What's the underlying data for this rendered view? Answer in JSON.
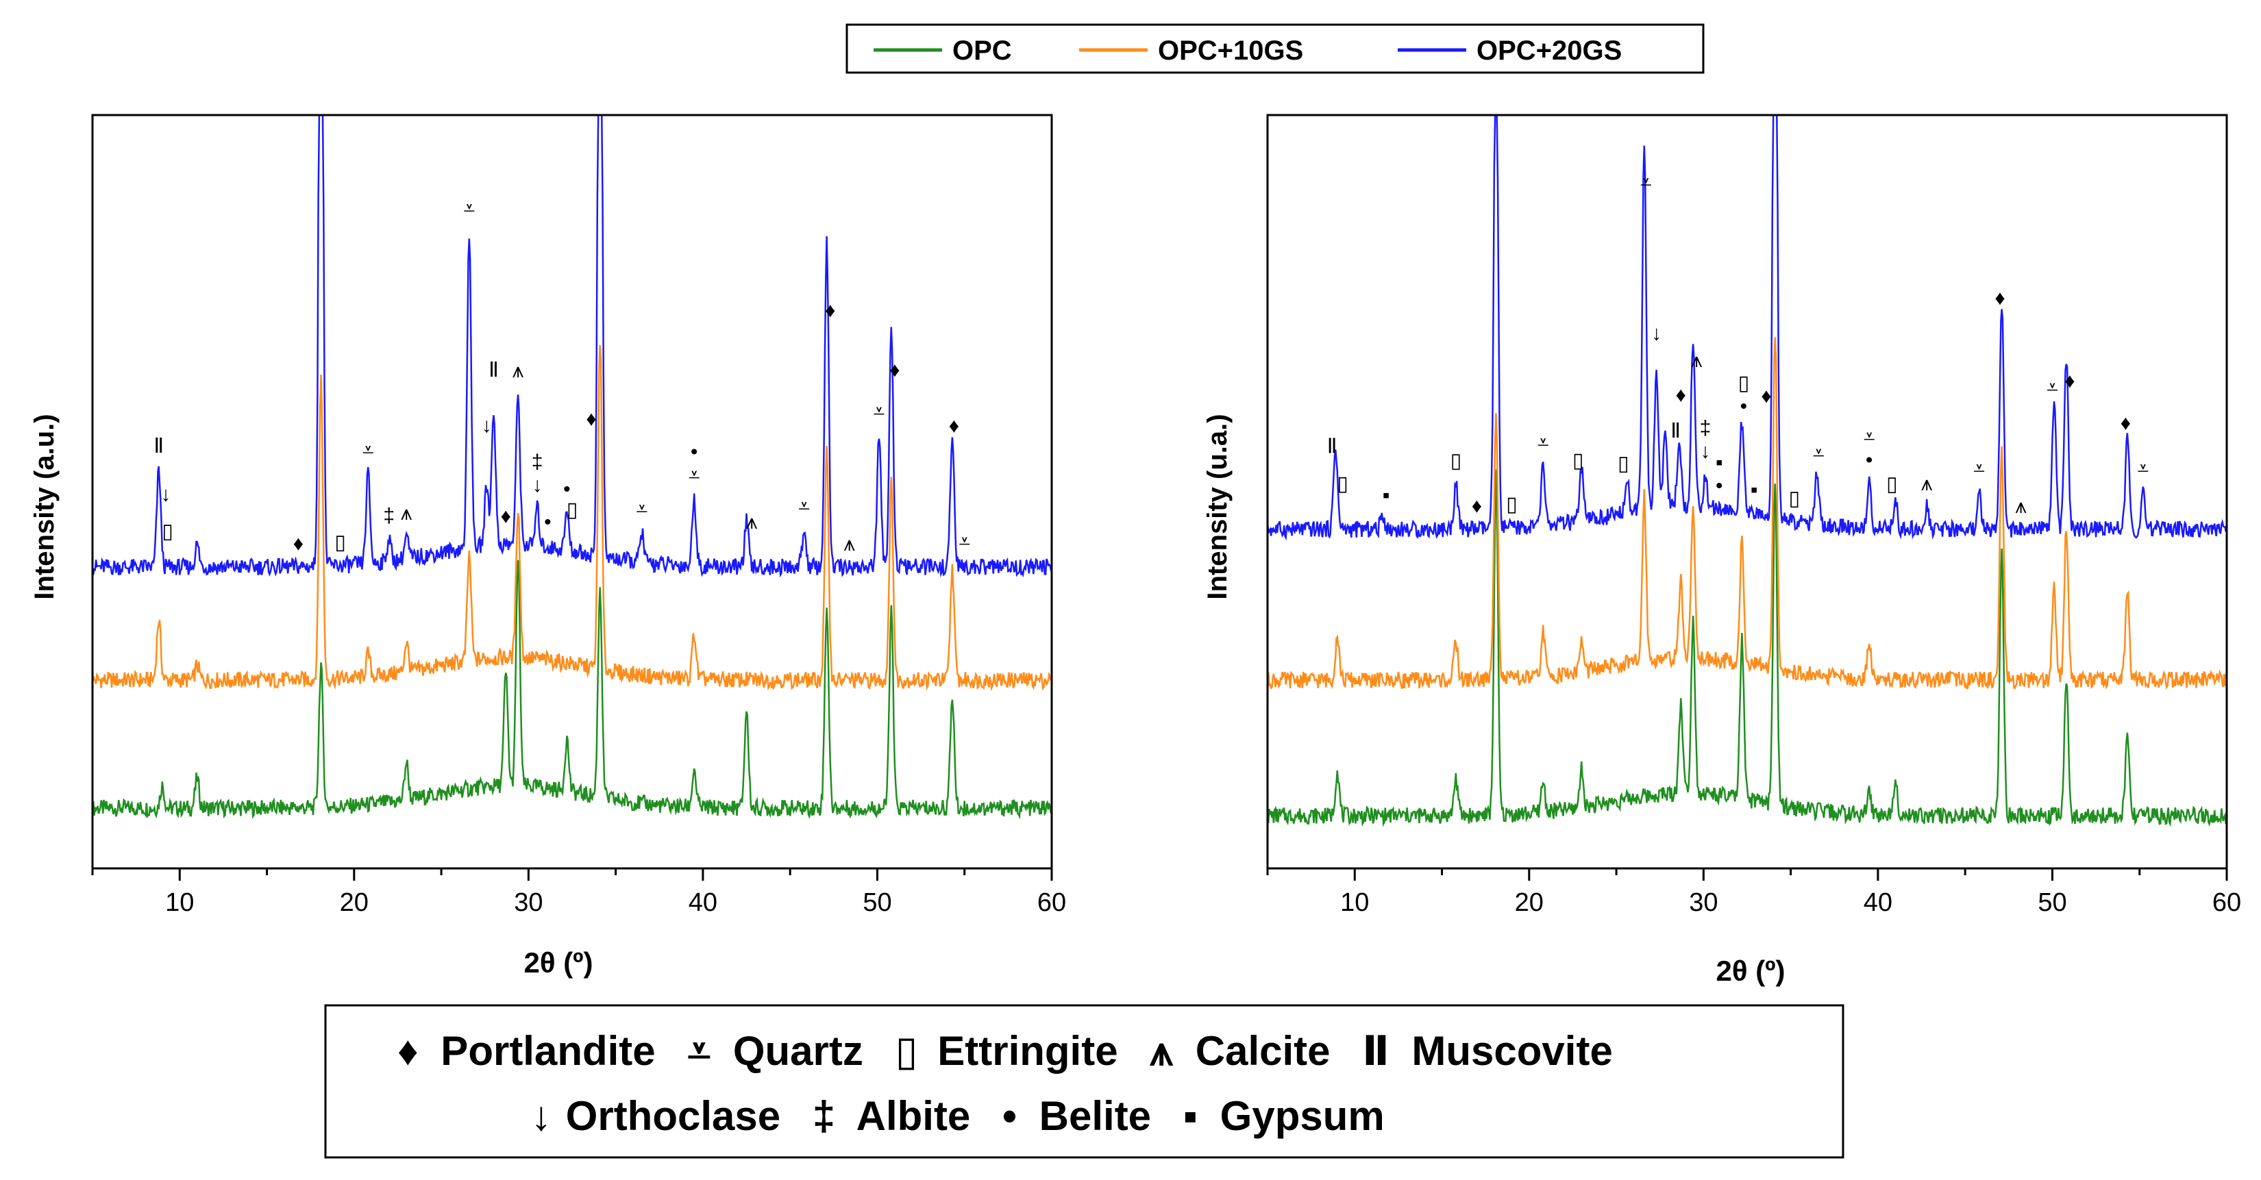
{
  "chart_data": [
    {
      "type": "line",
      "panel": "left",
      "xlabel": "2θ (º)",
      "ylabel": "Intensity (a.u.)",
      "xlim": [
        5,
        60
      ],
      "xticks": [
        10,
        20,
        30,
        40,
        50,
        60
      ],
      "series": [
        {
          "name": "OPC",
          "baseline": 0.08,
          "peaks": [
            [
              9.0,
              0.03
            ],
            [
              11.0,
              0.04
            ],
            [
              18.1,
              0.19
            ],
            [
              23.0,
              0.05
            ],
            [
              28.7,
              0.15
            ],
            [
              29.4,
              0.3
            ],
            [
              32.2,
              0.07
            ],
            [
              34.1,
              0.28
            ],
            [
              39.5,
              0.05
            ],
            [
              42.5,
              0.13
            ],
            [
              47.1,
              0.27
            ],
            [
              50.8,
              0.26
            ],
            [
              54.3,
              0.15
            ]
          ]
        },
        {
          "name": "OPC+10GS",
          "baseline": 0.25,
          "peaks": [
            [
              8.8,
              0.08
            ],
            [
              11.0,
              0.02
            ],
            [
              18.1,
              0.4
            ],
            [
              20.8,
              0.03
            ],
            [
              23.0,
              0.04
            ],
            [
              26.6,
              0.14
            ],
            [
              29.4,
              0.2
            ],
            [
              34.1,
              0.44
            ],
            [
              39.5,
              0.06
            ],
            [
              47.1,
              0.3
            ],
            [
              50.8,
              0.26
            ],
            [
              54.3,
              0.15
            ]
          ]
        },
        {
          "name": "OPC+20GS",
          "baseline": 0.4,
          "peaks": [
            [
              8.8,
              0.13
            ],
            [
              11.0,
              0.03
            ],
            [
              18.1,
              1.15
            ],
            [
              20.8,
              0.12
            ],
            [
              22.0,
              0.03
            ],
            [
              23.0,
              0.03
            ],
            [
              26.6,
              0.42
            ],
            [
              27.6,
              0.08
            ],
            [
              28.0,
              0.18
            ],
            [
              29.4,
              0.2
            ],
            [
              30.5,
              0.05
            ],
            [
              32.2,
              0.05
            ],
            [
              34.1,
              1.15
            ],
            [
              36.5,
              0.04
            ],
            [
              39.5,
              0.09
            ],
            [
              42.5,
              0.06
            ],
            [
              45.8,
              0.05
            ],
            [
              47.1,
              0.43
            ],
            [
              50.1,
              0.17
            ],
            [
              50.8,
              0.32
            ],
            [
              54.3,
              0.17
            ]
          ]
        }
      ]
    },
    {
      "type": "line",
      "panel": "right",
      "xlabel": "2θ (º)",
      "ylabel": "Intensity (u.a.)",
      "xlim": [
        5,
        60
      ],
      "xticks": [
        10,
        20,
        30,
        40,
        50,
        60
      ],
      "series": [
        {
          "name": "OPC",
          "baseline": 0.07,
          "peaks": [
            [
              9.0,
              0.06
            ],
            [
              15.8,
              0.05
            ],
            [
              18.1,
              0.45
            ],
            [
              20.8,
              0.04
            ],
            [
              23.0,
              0.05
            ],
            [
              28.7,
              0.12
            ],
            [
              29.4,
              0.23
            ],
            [
              32.2,
              0.21
            ],
            [
              34.1,
              0.43
            ],
            [
              39.5,
              0.03
            ],
            [
              41.0,
              0.05
            ],
            [
              47.1,
              0.35
            ],
            [
              50.8,
              0.18
            ],
            [
              54.3,
              0.11
            ]
          ]
        },
        {
          "name": "OPC+10GS",
          "baseline": 0.25,
          "peaks": [
            [
              9.0,
              0.06
            ],
            [
              15.8,
              0.05
            ],
            [
              18.1,
              0.36
            ],
            [
              20.8,
              0.06
            ],
            [
              23.0,
              0.04
            ],
            [
              26.6,
              0.22
            ],
            [
              28.7,
              0.1
            ],
            [
              29.4,
              0.2
            ],
            [
              32.2,
              0.16
            ],
            [
              34.1,
              0.45
            ],
            [
              39.5,
              0.05
            ],
            [
              47.1,
              0.3
            ],
            [
              50.1,
              0.12
            ],
            [
              50.8,
              0.2
            ],
            [
              54.3,
              0.12
            ]
          ]
        },
        {
          "name": "OPC+20GS",
          "baseline": 0.45,
          "peaks": [
            [
              8.9,
              0.11
            ],
            [
              11.6,
              0.02
            ],
            [
              15.8,
              0.06
            ],
            [
              18.1,
              0.7
            ],
            [
              20.8,
              0.08
            ],
            [
              23.0,
              0.07
            ],
            [
              25.6,
              0.05
            ],
            [
              26.6,
              0.48
            ],
            [
              27.3,
              0.18
            ],
            [
              27.8,
              0.1
            ],
            [
              28.6,
              0.09
            ],
            [
              29.4,
              0.22
            ],
            [
              30.1,
              0.04
            ],
            [
              32.2,
              0.12
            ],
            [
              34.1,
              1.0
            ],
            [
              36.5,
              0.07
            ],
            [
              39.5,
              0.06
            ],
            [
              41.0,
              0.04
            ],
            [
              42.8,
              0.03
            ],
            [
              45.8,
              0.05
            ],
            [
              47.1,
              0.3
            ],
            [
              50.1,
              0.17
            ],
            [
              50.8,
              0.23
            ],
            [
              54.3,
              0.12
            ],
            [
              55.2,
              0.05
            ]
          ]
        }
      ]
    }
  ],
  "legend": {
    "entries": [
      {
        "name": "OPC",
        "color": "#1f8f1f"
      },
      {
        "name": "OPC+10GS",
        "color": "#ff8c1a"
      },
      {
        "name": "OPC+20GS",
        "color": "#1a1aff"
      }
    ]
  },
  "phase_legend": {
    "rows": [
      [
        {
          "symbol": "♦",
          "name": "Portlandite"
        },
        {
          "symbol": "⩡",
          "name": "Quartz"
        },
        {
          "symbol": "▯",
          "name": "Ettringite"
        },
        {
          "symbol": "⩚",
          "name": "Calcite"
        },
        {
          "symbol": "Ⅱ",
          "name": "Muscovite"
        }
      ],
      [
        {
          "symbol": "↓",
          "name": "Orthoclase"
        },
        {
          "symbol": "‡",
          "name": "Albite"
        },
        {
          "symbol": "•",
          "name": "Belite"
        },
        {
          "symbol": "▪",
          "name": "Gypsum"
        }
      ]
    ]
  }
}
